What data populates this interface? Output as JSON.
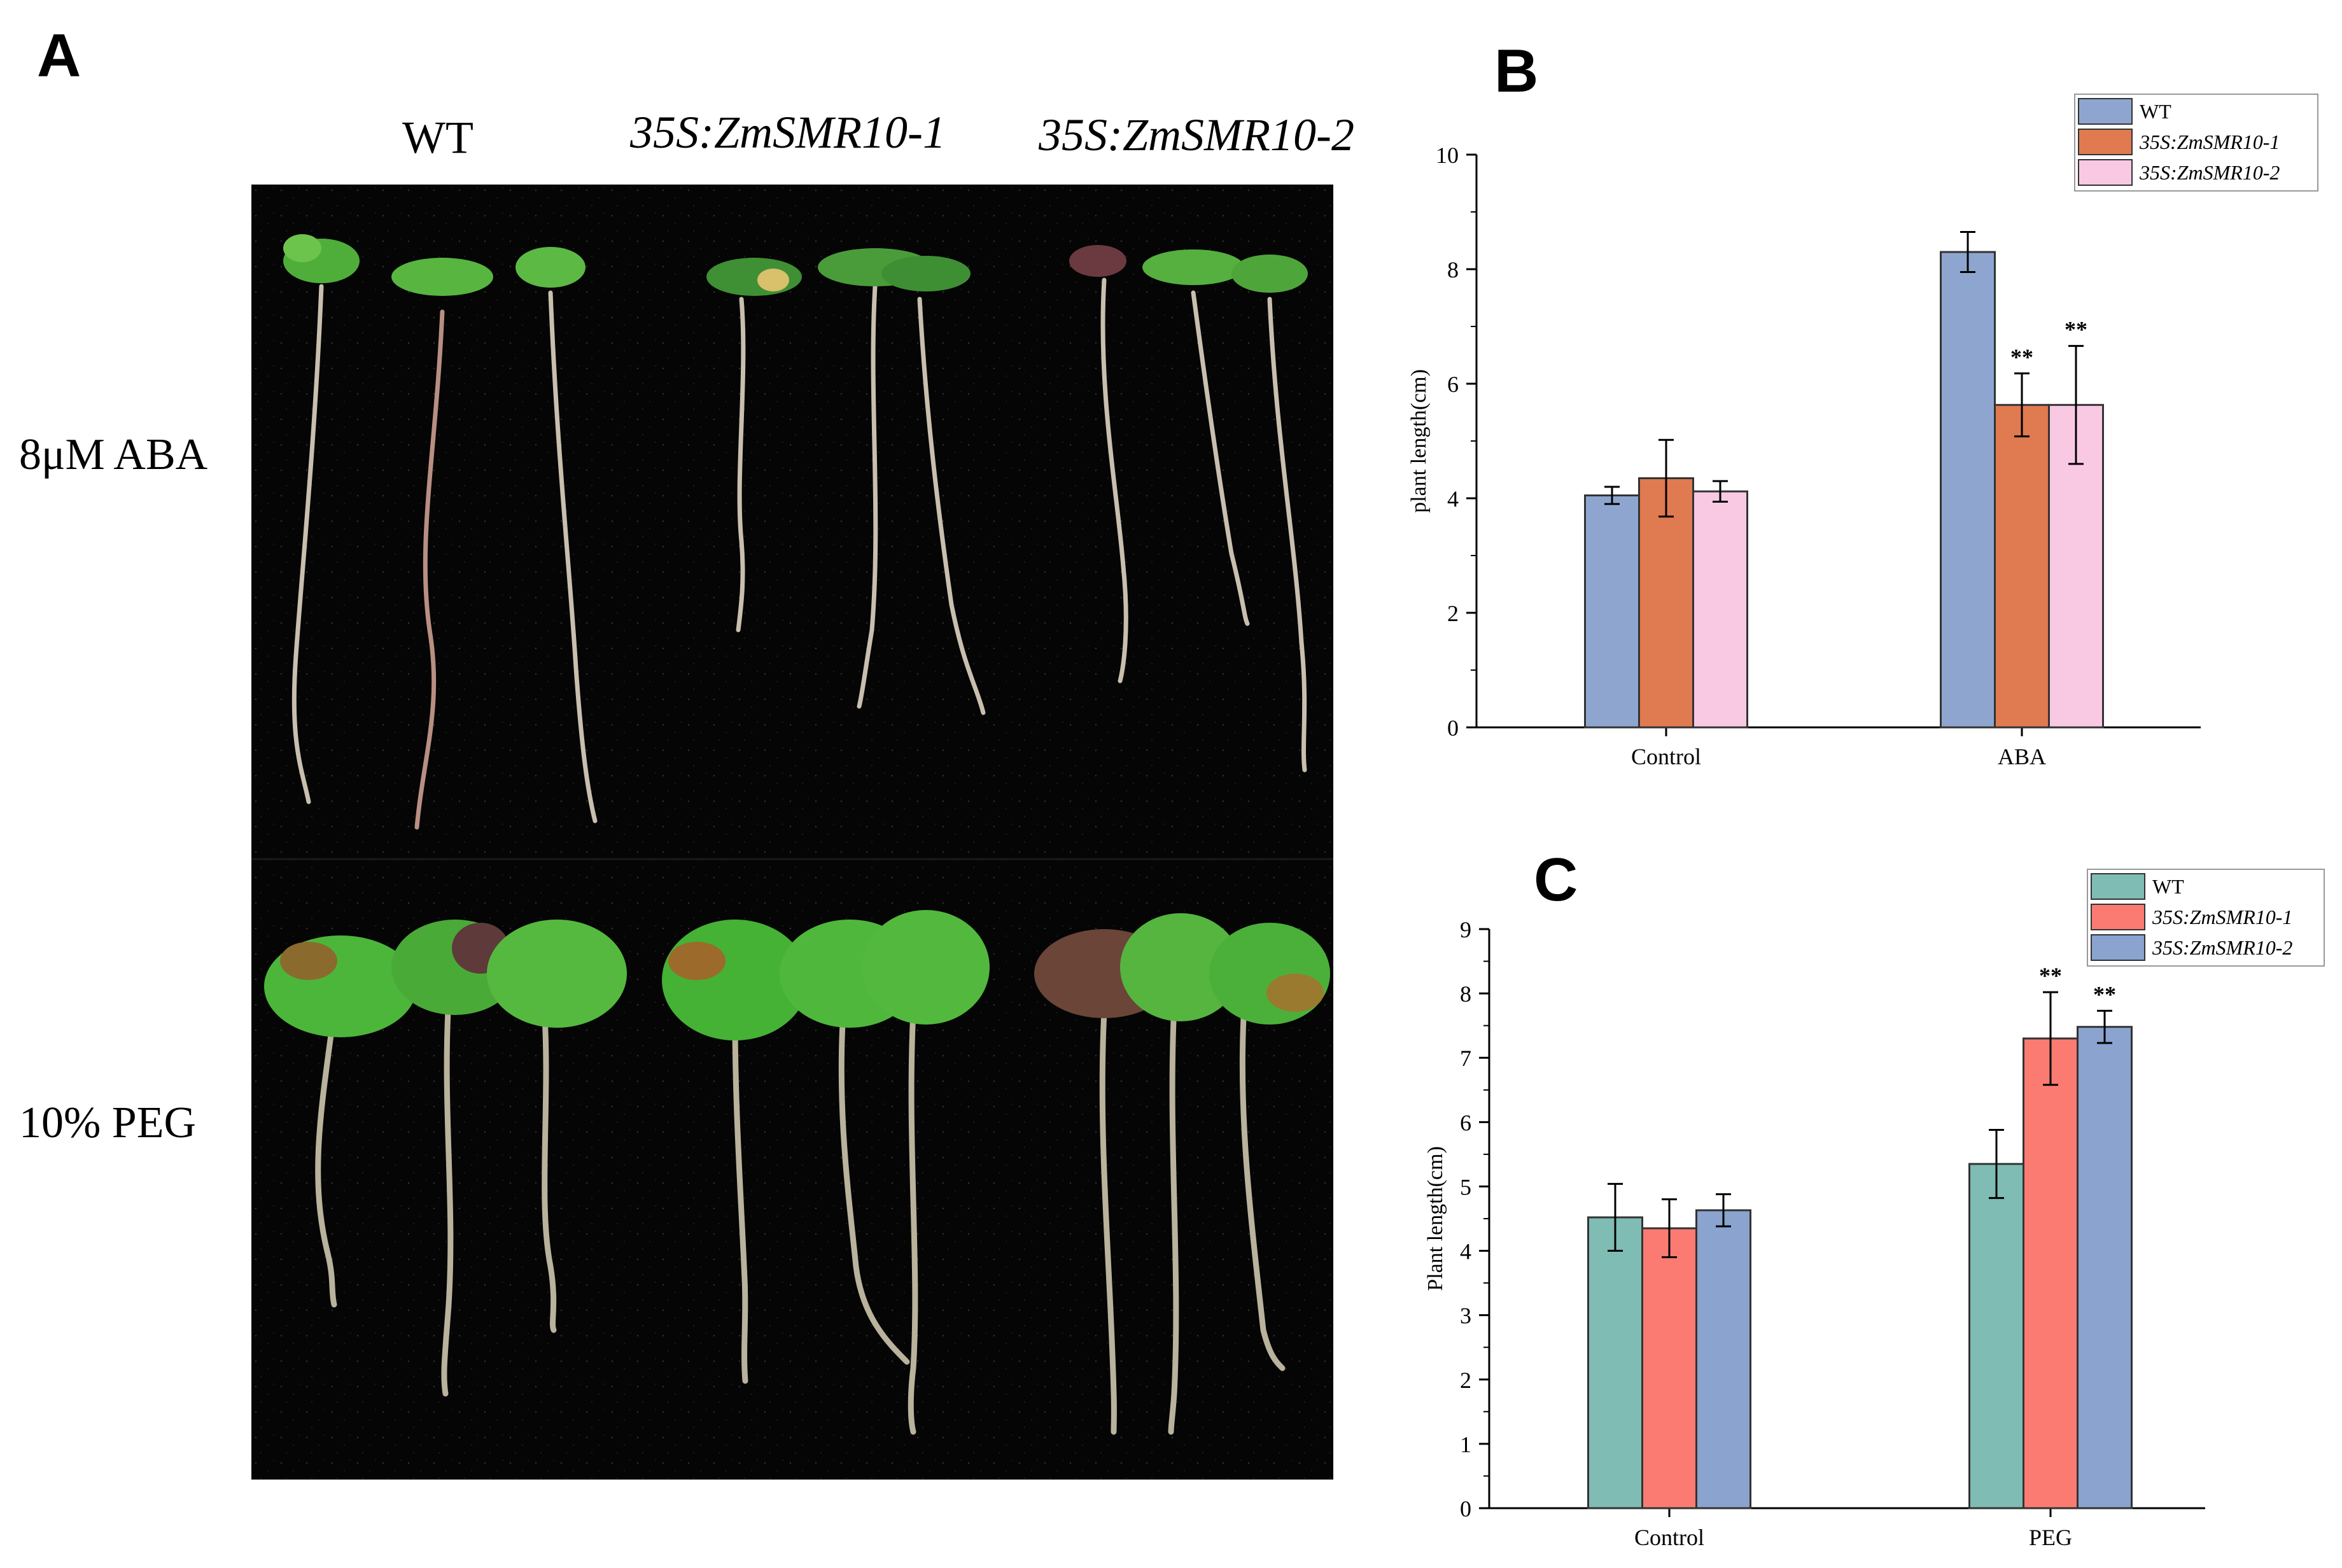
{
  "figure": {
    "panel_a": {
      "letter": "A",
      "columns": [
        "WT",
        "35S:ZmSMR10-1",
        "35S:ZmSMR10-2"
      ],
      "rows": [
        "8μM ABA",
        "10% PEG"
      ]
    },
    "panel_b": {
      "letter": "B"
    },
    "panel_c": {
      "letter": "C"
    }
  },
  "chart_data": [
    {
      "panel": "B",
      "type": "bar",
      "categories": [
        "Control",
        "ABA"
      ],
      "series": [
        {
          "name": "WT",
          "values": [
            4.05,
            8.3
          ],
          "errors": [
            0.15,
            0.35
          ],
          "color": "#8ea6cf"
        },
        {
          "name": "35S:ZmSMR10-1",
          "values": [
            4.35,
            5.63
          ],
          "errors": [
            0.67,
            0.55
          ],
          "color": "#e07a50"
        },
        {
          "name": "35S:ZmSMR10-2",
          "values": [
            4.12,
            5.63
          ],
          "errors": [
            0.18,
            1.03
          ],
          "color": "#f9c9e4"
        }
      ],
      "significance": [
        {
          "category": "ABA",
          "series": "35S:ZmSMR10-1",
          "label": "**"
        },
        {
          "category": "ABA",
          "series": "35S:ZmSMR10-2",
          "label": "**"
        }
      ],
      "ylabel": "plant length(cm)",
      "ylim": [
        0,
        10
      ],
      "yticks": [
        0,
        2,
        4,
        6,
        8,
        10
      ],
      "legend": "top-right"
    },
    {
      "panel": "C",
      "type": "bar",
      "categories": [
        "Control",
        "PEG"
      ],
      "series": [
        {
          "name": "WT",
          "values": [
            4.52,
            5.35
          ],
          "errors": [
            0.52,
            0.53
          ],
          "color": "#7fbcb3"
        },
        {
          "name": "35S:ZmSMR10-1",
          "values": [
            4.35,
            7.3
          ],
          "errors": [
            0.45,
            0.72
          ],
          "color": "#fb7b72"
        },
        {
          "name": "35S:ZmSMR10-2",
          "values": [
            4.63,
            7.48
          ],
          "errors": [
            0.25,
            0.25
          ],
          "color": "#8aa3cf"
        }
      ],
      "significance": [
        {
          "category": "PEG",
          "series": "35S:ZmSMR10-1",
          "label": "**"
        },
        {
          "category": "PEG",
          "series": "35S:ZmSMR10-2",
          "label": "**"
        }
      ],
      "ylabel": "Plant length(cm)",
      "ylim": [
        0,
        9
      ],
      "yticks": [
        0,
        1,
        2,
        3,
        4,
        5,
        6,
        7,
        8,
        9
      ],
      "legend": "top-right"
    }
  ]
}
